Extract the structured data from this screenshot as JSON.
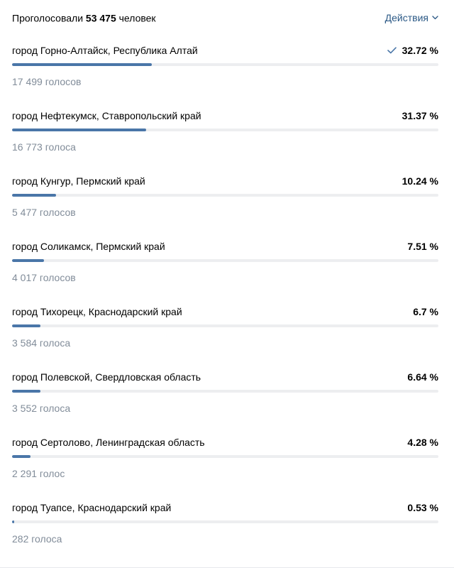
{
  "header": {
    "prefix": "Проголосовали",
    "count": "53 475",
    "suffix": "человек",
    "actions_label": "Действия",
    "actions_icon": "chevron-down-icon"
  },
  "options": [
    {
      "label": "город Горно-Алтайск, Республика Алтай",
      "percent": "32.72 %",
      "votes": "17 499 голосов",
      "fill": 32.72,
      "selected": true
    },
    {
      "label": "город Нефтекумск, Ставропольский край",
      "percent": "31.37 %",
      "votes": "16 773 голоса",
      "fill": 31.37,
      "selected": false
    },
    {
      "label": "город Кунгур, Пермский край",
      "percent": "10.24 %",
      "votes": "5 477 голосов",
      "fill": 10.24,
      "selected": false
    },
    {
      "label": "город Соликамск, Пермский край",
      "percent": "7.51 %",
      "votes": "4 017 голосов",
      "fill": 7.51,
      "selected": false
    },
    {
      "label": "город Тихорецк, Краснодарский край",
      "percent": "6.7 %",
      "votes": "3 584 голоса",
      "fill": 6.7,
      "selected": false
    },
    {
      "label": "город Полевской, Свердловская область",
      "percent": "6.64 %",
      "votes": "3 552 голоса",
      "fill": 6.64,
      "selected": false
    },
    {
      "label": "город Сертолово, Ленинградская область",
      "percent": "4.28 %",
      "votes": "2 291 голос",
      "fill": 4.28,
      "selected": false
    },
    {
      "label": "город Туапсе, Краснодарский край",
      "percent": "0.53 %",
      "votes": "282 голоса",
      "fill": 0.53,
      "selected": false
    }
  ],
  "colors": {
    "accent": "#4a76a8",
    "link": "#2a5885",
    "track": "#edeef0",
    "secondary_text": "#818c99"
  }
}
